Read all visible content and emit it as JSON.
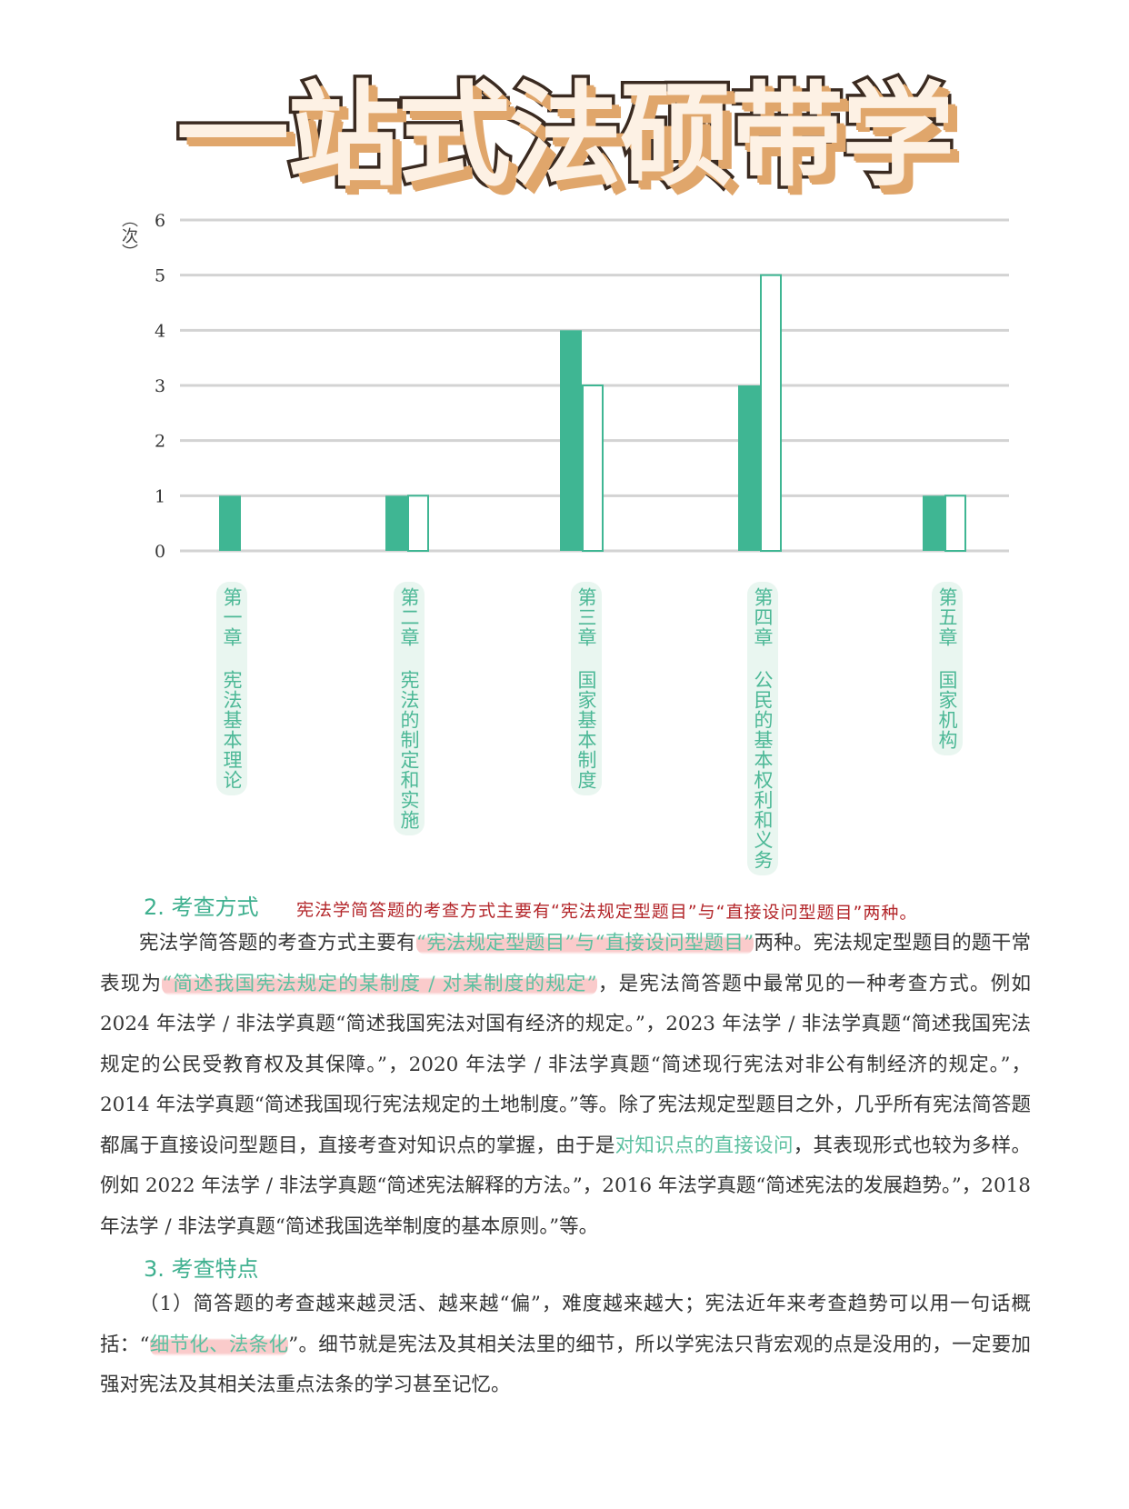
{
  "title": "一站式法硕带学",
  "chart_data": {
    "type": "bar",
    "ylabel": "（次）",
    "ylim": [
      0,
      6
    ],
    "yticks": [
      "0",
      "1",
      "2",
      "3",
      "4",
      "5",
      "6"
    ],
    "grid": true,
    "categories": [
      "第一章 宪法基本理论",
      "第二章 宪法的制定和实施",
      "第三章 国家基本制度",
      "第四章 公民的基本权利和义务",
      "第五章 国家机构"
    ],
    "series": [
      {
        "style": "filled",
        "values": [
          1,
          1,
          4,
          3,
          1
        ]
      },
      {
        "style": "outline",
        "values": [
          0,
          1,
          3,
          5,
          1
        ]
      }
    ],
    "colors": {
      "bar": "#3fb693",
      "grid": "#d3d3d3",
      "label": "#4cb896"
    }
  },
  "section2": {
    "heading": "2. 考查方式",
    "note": "宪法学简答题的考查方式主要有“宪法规定型题目”与“直接设问型题目”两种。",
    "segments": [
      {
        "t": "宪法学简答题的考查方式主要有",
        "s": ""
      },
      {
        "t": "“宪法规定型题目”与“直接设问型题目”",
        "s": "mark"
      },
      {
        "t": "两种。宪法规定型题目的题干常表现为",
        "s": ""
      },
      {
        "t": "“简述我国宪法规定的某制度 / 对某制度的规定”",
        "s": "mark"
      },
      {
        "t": "，是宪法简答题中最常见的一种考查方式。例如 2024 年法学 / 非法学真题“简述我国宪法对国有经济的规定。”，2023 年法学 / 非法学真题“简述我国宪法规定的公民受教育权及其保障。”，2020 年法学 / 非法学真题“简述现行宪法对非公有制经济的规定。”，2014 年法学真题“简述我国现行宪法规定的土地制度。”等。除了宪法规定型题目之外，几乎所有宪法简答题都属于直接设问型题目，直接考查对知识点的掌握，由于是",
        "s": ""
      },
      {
        "t": "对知识点的直接设问",
        "s": "hl"
      },
      {
        "t": "，其表现形式也较为多样。例如 2022 年法学 / 非法学真题“简述宪法解释的方法。”，2016 年法学真题“简述宪法的发展趋势。”，2018 年法学 / 非法学真题“简述我国选举制度的基本原则。”等。",
        "s": ""
      }
    ]
  },
  "section3": {
    "heading": "3. 考查特点",
    "segments": [
      {
        "t": "（1）简答题的考查越来越灵活、越来越“偏”，难度越来越大；宪法近年来考查趋势可以用一句话概括：“",
        "s": ""
      },
      {
        "t": "细节化、法条化",
        "s": "mark"
      },
      {
        "t": "”。细节就是宪法及其相关法里的细节，所以学宪法只背宏观的点是没用的，一定要加强对宪法及其相关法重点法条的学习甚至记忆。",
        "s": ""
      }
    ]
  }
}
